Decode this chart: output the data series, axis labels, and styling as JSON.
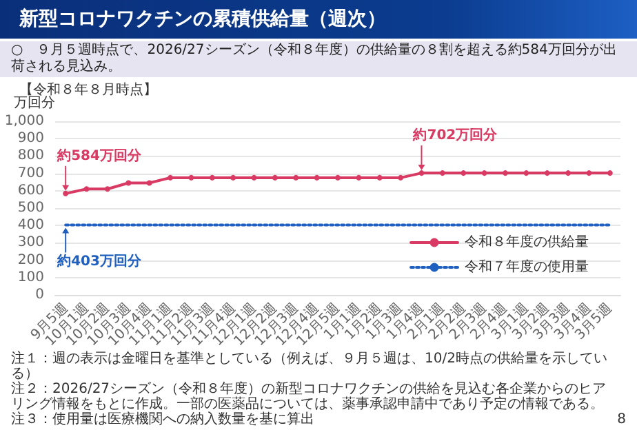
{
  "chart_data": {
    "type": "line",
    "title": "新型コロナワクチンの累積供給量（週次）",
    "subtitle": "○　９月５週時点で、2026/27シーズン（令和８年度）の供給量の８割を超える約584万回分が出荷される見込み。",
    "ylabel": "万回分",
    "categories": [
      "9月5週",
      "10月1週",
      "10月2週",
      "10月3週",
      "10月4週",
      "11月1週",
      "11月2週",
      "11月3週",
      "11月4週",
      "12月1週",
      "12月2週",
      "12月3週",
      "12月4週",
      "12月5週",
      "1月1週",
      "1月2週",
      "1月3週",
      "1月4週",
      "2月1週",
      "2月2週",
      "2月3週",
      "2月4週",
      "3月1週",
      "3月2週",
      "3月3週",
      "3月4週",
      "3月5週"
    ],
    "series": [
      {
        "name": "令和８年度の供給量",
        "color": "#d93a63",
        "marker": "circle",
        "line_style": "solid",
        "values": [
          584,
          610,
          610,
          645,
          645,
          675,
          675,
          675,
          675,
          675,
          675,
          675,
          675,
          675,
          675,
          675,
          675,
          702,
          702,
          702,
          702,
          702,
          702,
          702,
          702,
          702,
          702
        ]
      },
      {
        "name": "令和７年度の使用量",
        "color": "#1f5fbf",
        "marker": "none",
        "line_style": "dotted",
        "values": [
          403,
          403,
          403,
          403,
          403,
          403,
          403,
          403,
          403,
          403,
          403,
          403,
          403,
          403,
          403,
          403,
          403,
          403,
          403,
          403,
          403,
          403,
          403,
          403,
          403,
          403,
          403
        ]
      }
    ],
    "ylim": [
      0,
      1000
    ],
    "yticks": [
      0,
      100,
      200,
      300,
      400,
      500,
      600,
      700,
      800,
      900,
      {
        "value": 1000,
        "label": "1,000"
      }
    ],
    "grid": "y",
    "legend": "bottom right",
    "annotations": [
      "【令和８年８月時点】",
      {
        "text": "約584万回分",
        "x": "9月5週",
        "y": 584
      },
      {
        "text": "約702万回分",
        "x": "1月4週",
        "y": 702
      },
      {
        "text": "約403万回分",
        "x": "9月5週",
        "y": 403
      },
      "注１：週の表示は金曜日を基準としている（例えば、９月５週は、10/2時点の供給量を示している）",
      "注２：2026/27シーズン（令和８年度）の新型コロナワクチンの供給を見込む各企業からのヒアリング情報をもとに作成。一部の医薬品については、薬事承認申請中であり予定の情報である。",
      "注３：使用量は医療機関への納入数量を基に算出",
      "8"
    ]
  }
}
